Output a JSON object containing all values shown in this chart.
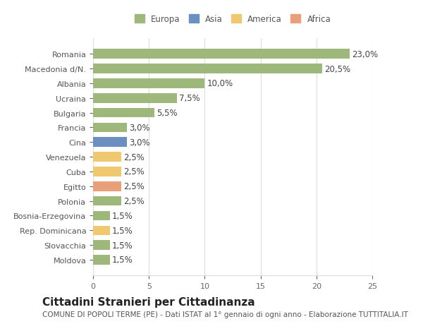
{
  "categories": [
    "Moldova",
    "Slovacchia",
    "Rep. Dominicana",
    "Bosnia-Erzegovina",
    "Polonia",
    "Egitto",
    "Cuba",
    "Venezuela",
    "Cina",
    "Francia",
    "Bulgaria",
    "Ucraina",
    "Albania",
    "Macedonia d/N.",
    "Romania"
  ],
  "values": [
    1.5,
    1.5,
    1.5,
    1.5,
    2.5,
    2.5,
    2.5,
    2.5,
    3.0,
    3.0,
    5.5,
    7.5,
    10.0,
    20.5,
    23.0
  ],
  "bar_colors": [
    "#9db87a",
    "#9db87a",
    "#f0c870",
    "#9db87a",
    "#9db87a",
    "#e8a07a",
    "#f0c870",
    "#f0c870",
    "#6a8fc0",
    "#9db87a",
    "#9db87a",
    "#9db87a",
    "#9db87a",
    "#9db87a",
    "#9db87a"
  ],
  "labels": [
    "1,5%",
    "1,5%",
    "1,5%",
    "1,5%",
    "2,5%",
    "2,5%",
    "2,5%",
    "2,5%",
    "3,0%",
    "3,0%",
    "5,5%",
    "7,5%",
    "10,0%",
    "20,5%",
    "23,0%"
  ],
  "legend": [
    {
      "label": "Europa",
      "color": "#9db87a"
    },
    {
      "label": "Asia",
      "color": "#6a8fc0"
    },
    {
      "label": "America",
      "color": "#f0c870"
    },
    {
      "label": "Africa",
      "color": "#e8a07a"
    }
  ],
  "title": "Cittadini Stranieri per Cittadinanza",
  "subtitle": "COMUNE DI POPOLI TERME (PE) - Dati ISTAT al 1° gennaio di ogni anno - Elaborazione TUTTITALIA.IT",
  "xlim": [
    0,
    25
  ],
  "xticks": [
    0,
    5,
    10,
    15,
    20,
    25
  ],
  "background_color": "#ffffff",
  "grid_color": "#dddddd",
  "label_fontsize": 8.5,
  "title_fontsize": 11,
  "subtitle_fontsize": 7.5
}
